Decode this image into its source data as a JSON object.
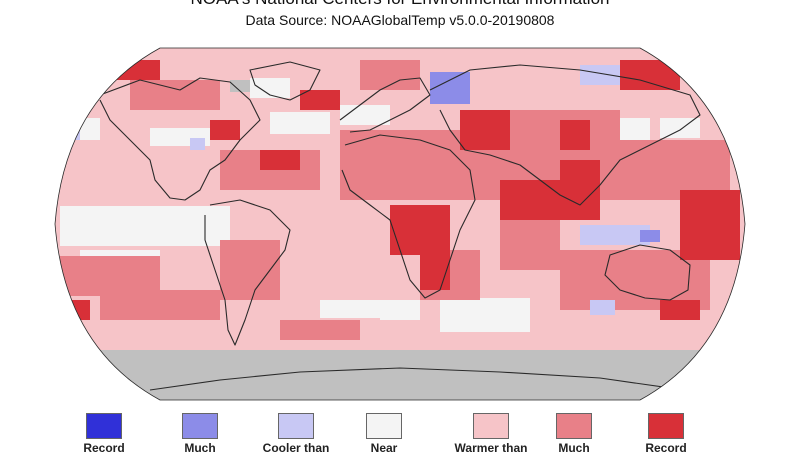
{
  "header": {
    "title": "NOAA's National Centers for Environmental Information",
    "subtitle": "Data Source: NOAAGlobalTemp v5.0.0-20190808"
  },
  "map": {
    "projection": "robinson",
    "subject": "land and ocean temperature percentiles",
    "colors": {
      "no_data": "#c0c0c0",
      "outline": "#2a2a2a",
      "record_cold": "#3030d8",
      "much_cooler": "#8c8ce8",
      "cooler": "#c8c8f4",
      "near": "#f4f4f4",
      "warmer": "#f6c4c8",
      "much_warmer": "#e88088",
      "record_warm": "#d83038"
    }
  },
  "legend": {
    "items": [
      {
        "label": "Record",
        "color": "#3030d8"
      },
      {
        "label": "Much",
        "color": "#8c8ce8"
      },
      {
        "label": "Cooler than",
        "color": "#c8c8f4"
      },
      {
        "label": "Near",
        "color": "#f4f4f4"
      },
      {
        "label": "Warmer than",
        "color": "#f6c4c8"
      },
      {
        "label": "Much",
        "color": "#e88088"
      },
      {
        "label": "Record",
        "color": "#d83038"
      }
    ]
  }
}
